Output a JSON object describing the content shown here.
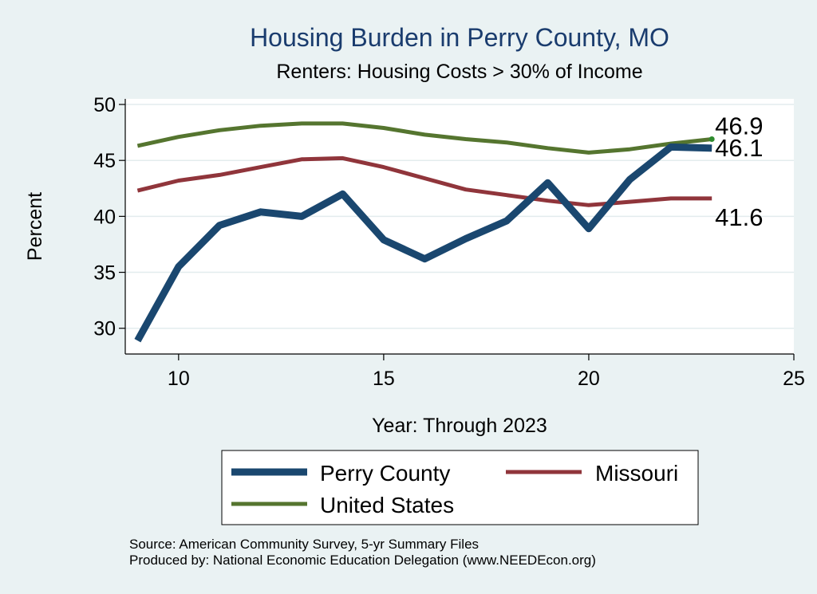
{
  "chart_data": {
    "type": "line",
    "title": "Housing Burden in Perry County, MO",
    "subtitle": "Renters: Housing Costs > 30% of Income",
    "xlabel": "Year: Through 2023",
    "ylabel": "Percent",
    "xlim": [
      8.7,
      25
    ],
    "ylim": [
      27.7,
      50.5
    ],
    "xticks": [
      10,
      15,
      20,
      25
    ],
    "yticks": [
      30,
      35,
      40,
      45,
      50
    ],
    "grid": true,
    "series": [
      {
        "name": "Perry County",
        "color": "#1a476f",
        "x": [
          9,
          10,
          11,
          12,
          13,
          14,
          15,
          16,
          17,
          18,
          19,
          20,
          21,
          22,
          23
        ],
        "values": [
          28.9,
          35.5,
          39.2,
          40.4,
          40.0,
          42.0,
          37.9,
          36.2,
          38.0,
          39.6,
          43.0,
          38.9,
          43.3,
          46.2,
          46.1
        ],
        "end_label": "46.1"
      },
      {
        "name": "Missouri",
        "color": "#90353b",
        "x": [
          9,
          10,
          11,
          12,
          13,
          14,
          15,
          16,
          17,
          18,
          19,
          20,
          21,
          22,
          23
        ],
        "values": [
          42.3,
          43.2,
          43.7,
          44.4,
          45.1,
          45.2,
          44.4,
          43.4,
          42.4,
          41.9,
          41.4,
          41.0,
          41.3,
          41.6,
          41.6
        ],
        "end_label": "41.6"
      },
      {
        "name": "United States",
        "color": "#55752f",
        "x": [
          9,
          10,
          11,
          12,
          13,
          14,
          15,
          16,
          17,
          18,
          19,
          20,
          21,
          22,
          23
        ],
        "values": [
          46.3,
          47.1,
          47.7,
          48.1,
          48.3,
          48.3,
          47.9,
          47.3,
          46.9,
          46.6,
          46.1,
          45.7,
          46.0,
          46.5,
          46.9
        ],
        "end_label": "46.9"
      }
    ],
    "legend": [
      "Perry County",
      "Missouri",
      "United States"
    ],
    "legend_position": "bottom"
  },
  "source": {
    "line1": "Source: American Community Survey, 5-yr Summary Files",
    "line2": "Produced by: National Economic Education Delegation (www.NEEDEcon.org)"
  }
}
